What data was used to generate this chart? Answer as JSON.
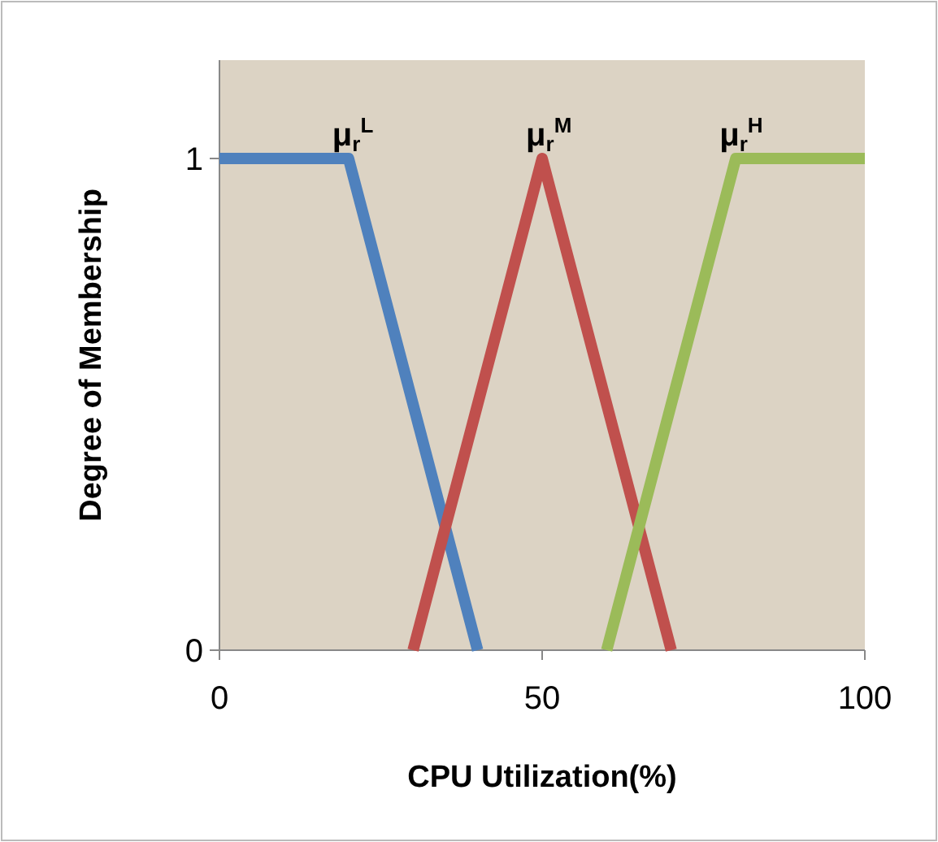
{
  "chart_data": {
    "type": "line",
    "xlabel": "CPU Utilization(%)",
    "ylabel": "Degree of Membership",
    "xlim": [
      0,
      100
    ],
    "xticks": [
      0,
      50,
      100
    ],
    "ylim": [
      0,
      1.2
    ],
    "yticks": [
      0,
      1
    ],
    "grid": false,
    "marker": "none",
    "line_style": "solid",
    "series": [
      {
        "color": "#4f81bd",
        "x": [
          0,
          20,
          40
        ],
        "values": [
          1,
          1,
          0
        ]
      },
      {
        "color": "#c0504d",
        "x": [
          30,
          50,
          70
        ],
        "values": [
          0,
          1,
          0
        ]
      },
      {
        "color": "#9bbb59",
        "x": [
          60,
          80,
          100
        ],
        "values": [
          0,
          1,
          1
        ]
      }
    ],
    "annotations": [
      {
        "text": "μ$_{r}$$^{L}$",
        "x": 20,
        "y": 1
      },
      {
        "text": "μ$_{r}$$^{M}$",
        "x": 50,
        "y": 1
      },
      {
        "text": "μ$_{r}$$^{H}$",
        "x": 80,
        "y": 1
      }
    ]
  }
}
